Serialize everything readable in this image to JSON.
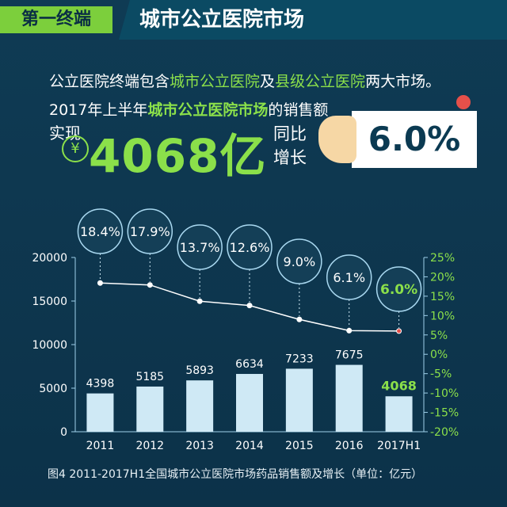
{
  "header": {
    "section": "第一终端",
    "title": "城市公立医院市场"
  },
  "intro": {
    "p1": "公立医院终端包含",
    "h1": "城市公立医院",
    "p2": "及",
    "h2": "县级公立医院",
    "p3": "两大市场。"
  },
  "sales": {
    "p1": "2017年上半年",
    "h1": "城市公立医院市场",
    "p2": "的销售额",
    "realize": "实现",
    "currency_symbol": "¥",
    "value": "4068亿",
    "yoy_label": "同比增长",
    "growth": "6.0%"
  },
  "caption": "图4  2011-2017H1全国城市公立医院市场药品销售额及增长（单位：亿元）",
  "chart_data": {
    "type": "bar",
    "categories": [
      "2011",
      "2012",
      "2013",
      "2014",
      "2015",
      "2016",
      "2017H1"
    ],
    "series": [
      {
        "values": [
          4398,
          5185,
          5893,
          6634,
          7233,
          7675,
          4068
        ],
        "color": "#cfe9f5",
        "labels": [
          "4398",
          "5185",
          "5893",
          "6634",
          "7233",
          "7675",
          "4068"
        ]
      },
      {
        "type": "line",
        "values": [
          18.4,
          17.9,
          13.7,
          12.6,
          9.0,
          6.1,
          6.0
        ],
        "labels": [
          "18.4%",
          "17.9%",
          "13.7%",
          "12.6%",
          "9.0%",
          "6.1%",
          "6.0%"
        ],
        "color": "#ffffff"
      }
    ],
    "y_left": {
      "range": [
        0,
        20000
      ],
      "ticks": [
        "0",
        "5000",
        "10000",
        "15000",
        "20000"
      ]
    },
    "y_right": {
      "range": [
        -20,
        25
      ],
      "ticks": [
        "-20%",
        "-15%",
        "-10%",
        "-5%",
        "0%",
        "5%",
        "10%",
        "15%",
        "20%",
        "25%"
      ]
    },
    "highlight_color": "#8be04a",
    "axis_color": "#9fd0ea",
    "bubble_fill": "#143f57",
    "bubble_stroke": "#a9d8f0"
  }
}
